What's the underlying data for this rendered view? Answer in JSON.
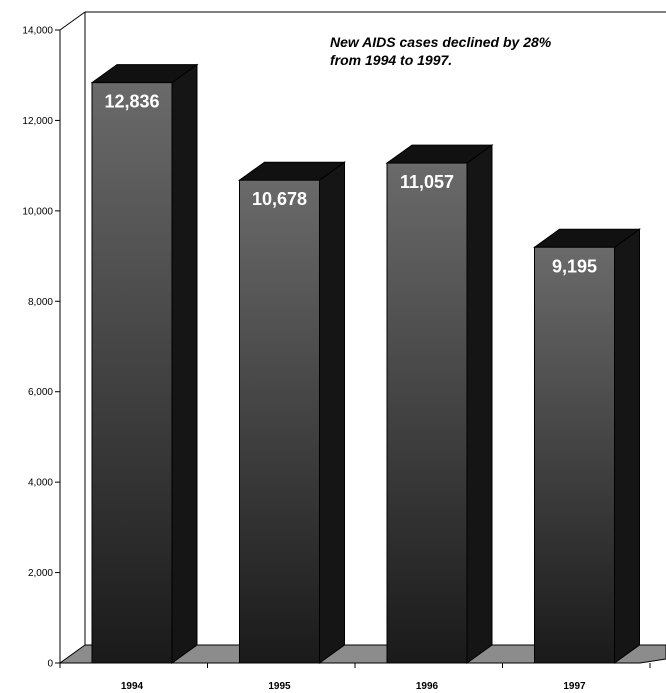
{
  "chart_data": {
    "type": "bar",
    "categories": [
      "1994",
      "1995",
      "1996",
      "1997"
    ],
    "values": [
      12836,
      10678,
      11057,
      9195
    ],
    "value_labels": [
      "12,836",
      "10,678",
      "11,057",
      "9,195"
    ],
    "ylim": [
      0,
      14000
    ],
    "yticks": [
      0,
      2000,
      4000,
      6000,
      8000,
      10000,
      12000,
      14000
    ],
    "ytick_labels": [
      "0",
      "2,000",
      "4,000",
      "6,000",
      "8,000",
      "10,000",
      "12,000",
      "14,000"
    ],
    "annotation": [
      "New AIDS cases declined by 28%",
      "from 1994 to 1997."
    ],
    "title": "",
    "xlabel": "",
    "ylabel": "",
    "grid": false,
    "bar_style": "3d",
    "colors": {
      "bar_front_top": "#6a6a6a",
      "bar_front_bottom": "#1a1a1a",
      "bar_top": "#111111",
      "bar_side": "#151515",
      "floor": "#8c8c8c"
    }
  }
}
